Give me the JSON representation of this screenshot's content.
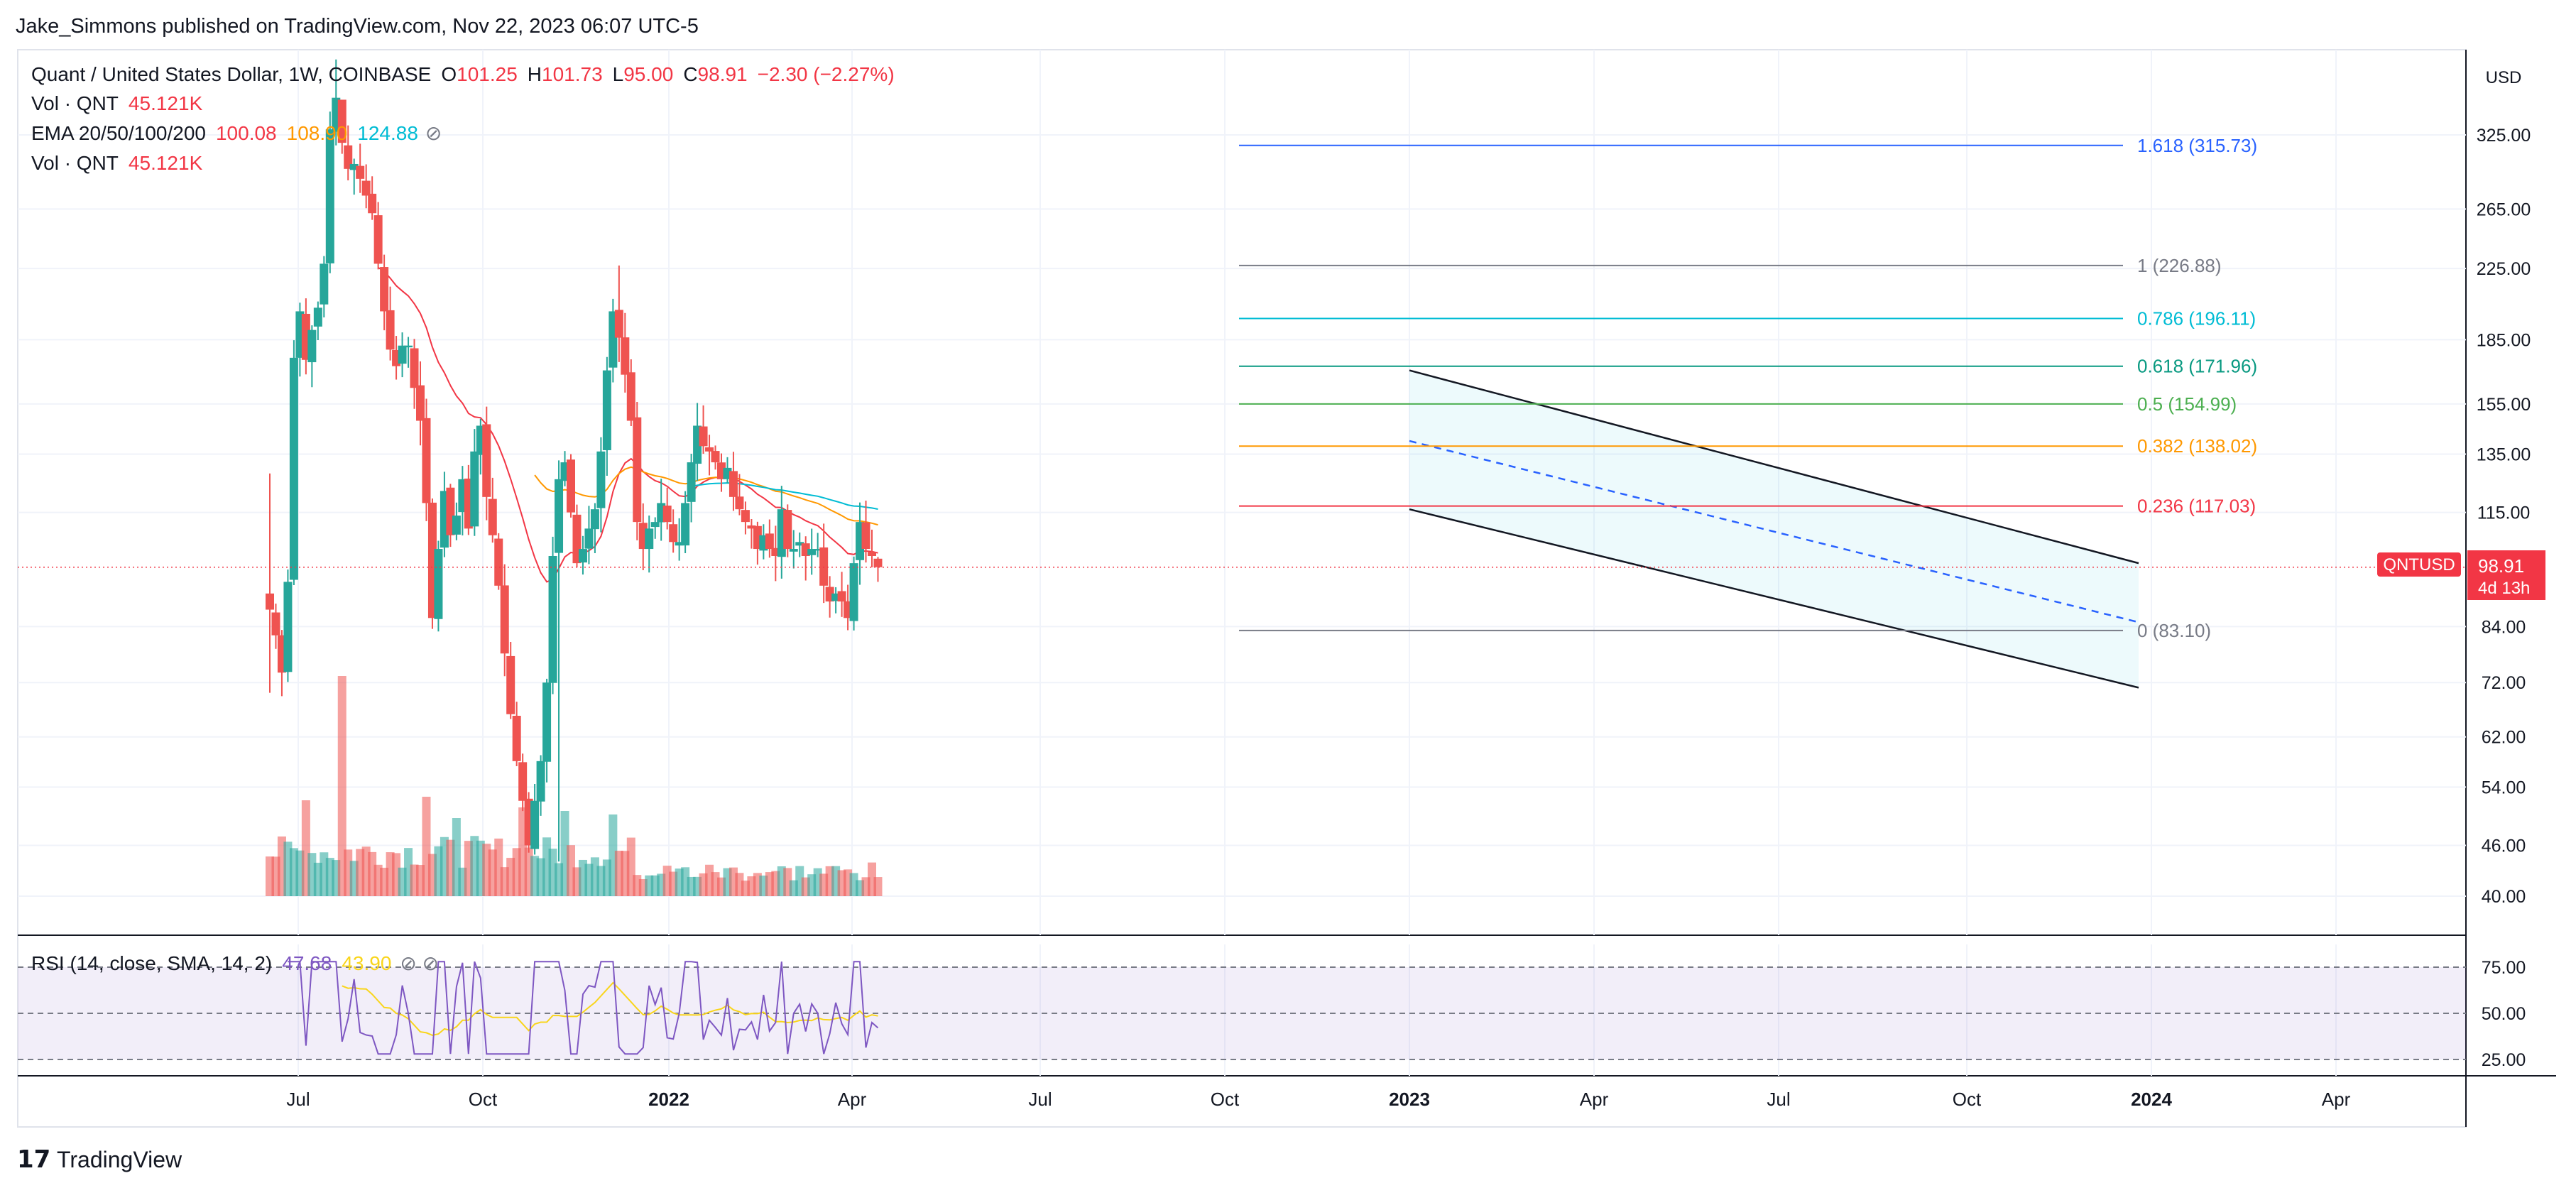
{
  "header": {
    "publisher_line": "Jake_Simmons published on TradingView.com, Nov 22, 2023 06:07 UTC-5"
  },
  "legend": {
    "symbol": "Quant / United States Dollar, 1W, COINBASE",
    "open_label": "O",
    "open_value": "101.25",
    "high_label": "H",
    "high_value": "101.73",
    "low_label": "L",
    "low_value": "95.00",
    "close_label": "C",
    "close_value": "98.91",
    "change": "−2.30 (−2.27%)",
    "vol1_label": "Vol · QNT",
    "vol1_value": "45.121K",
    "ema_label": "EMA 20/50/100/200",
    "ema20": "100.08",
    "ema50": "108.90",
    "ema100": "124.88",
    "vol2_label": "Vol · QNT",
    "vol2_value": "45.121K"
  },
  "rsi_legend": {
    "label": "RSI (14, close, SMA, 14, 2)",
    "rsi": "47.68",
    "sma": "43.90"
  },
  "price_scale": {
    "currency": "USD",
    "ticks": [
      "325.00",
      "265.00",
      "225.00",
      "185.00",
      "155.00",
      "135.00",
      "115.00",
      "84.00",
      "72.00",
      "62.00",
      "54.00",
      "46.00",
      "40.00"
    ],
    "current_symbol": "QNTUSD",
    "current_price": "98.91",
    "countdown": "4d 13h"
  },
  "rsi_scale": {
    "ticks": [
      "75.00",
      "50.00",
      "25.00"
    ]
  },
  "time_axis": {
    "labels": [
      "Jul",
      "Oct",
      "2022",
      "Apr",
      "Jul",
      "Oct",
      "2023",
      "Apr",
      "Jul",
      "Oct",
      "2024",
      "Apr"
    ]
  },
  "fib_levels": [
    {
      "label": "1.618 (315.73)",
      "color": "#2962ff"
    },
    {
      "label": "1 (226.88)",
      "color": "#787b86"
    },
    {
      "label": "0.786 (196.11)",
      "color": "#00bcd4"
    },
    {
      "label": "0.618 (171.96)",
      "color": "#089981"
    },
    {
      "label": "0.5 (154.99)",
      "color": "#4caf50"
    },
    {
      "label": "0.382 (138.02)",
      "color": "#ff9800"
    },
    {
      "label": "0.236 (117.03)",
      "color": "#f23645"
    },
    {
      "label": "0 (83.10)",
      "color": "#787b86"
    }
  ],
  "footer": {
    "brand": "TradingView"
  },
  "chart_data": {
    "type": "candlestick",
    "symbol": "Quant / United States Dollar",
    "interval": "1W",
    "exchange": "COINBASE",
    "y_scale": "log",
    "colors": {
      "up": "#26a69a",
      "down": "#ef5350",
      "ema20": "#f23645",
      "ema50": "#ff9800",
      "ema100": "#00bcd4",
      "rsi": "#7e57c2",
      "rsi_sma": "#f9d51b"
    },
    "weekly_closes": [
      88,
      82,
      74,
      95,
      176,
      200,
      175,
      190,
      202,
      228,
      330,
      360,
      318,
      296,
      300,
      288,
      275,
      262,
      228,
      200,
      180,
      172,
      182,
      182,
      162,
      148,
      118,
      86,
      104,
      122,
      108,
      114,
      126,
      110,
      136,
      146,
      120,
      108,
      94,
      78,
      66,
      58,
      52,
      46,
      52,
      58,
      72,
      102,
      126,
      132,
      115,
      100,
      104,
      110,
      116,
      136,
      170,
      200,
      186,
      168,
      148,
      112,
      104,
      110,
      112,
      118,
      112,
      106,
      106,
      118,
      132,
      146,
      138,
      136,
      132,
      126,
      130,
      120,
      116,
      112,
      110,
      104,
      108,
      104,
      102,
      116,
      104,
      104,
      106,
      102,
      104,
      104,
      94,
      90,
      92,
      90,
      86,
      100,
      112,
      104,
      102,
      98.91
    ],
    "fib_values": [
      315.73,
      226.88,
      196.11,
      171.96,
      154.99,
      138.02,
      117.03,
      83.1
    ],
    "channel": {
      "upper": [
        {
          "date": "2023-01-02",
          "price": 170
        },
        {
          "date": "2023-11-27",
          "price": 100
        }
      ],
      "lower": [
        {
          "date": "2023-01-02",
          "price": 116
        },
        {
          "date": "2023-11-27",
          "price": 71
        }
      ]
    },
    "last_values": {
      "open": 101.25,
      "high": 101.73,
      "low": 95.0,
      "close": 98.91,
      "ema20": 100.08,
      "ema50": 108.9,
      "ema100": 124.88,
      "volume": "45.121K",
      "rsi": 47.68,
      "rsi_sma": 43.9
    },
    "y_ticks": [
      325,
      265,
      225,
      185,
      155,
      135,
      115,
      84,
      72,
      62,
      54,
      46,
      40
    ],
    "rsi_ticks": [
      75,
      50,
      25
    ]
  }
}
